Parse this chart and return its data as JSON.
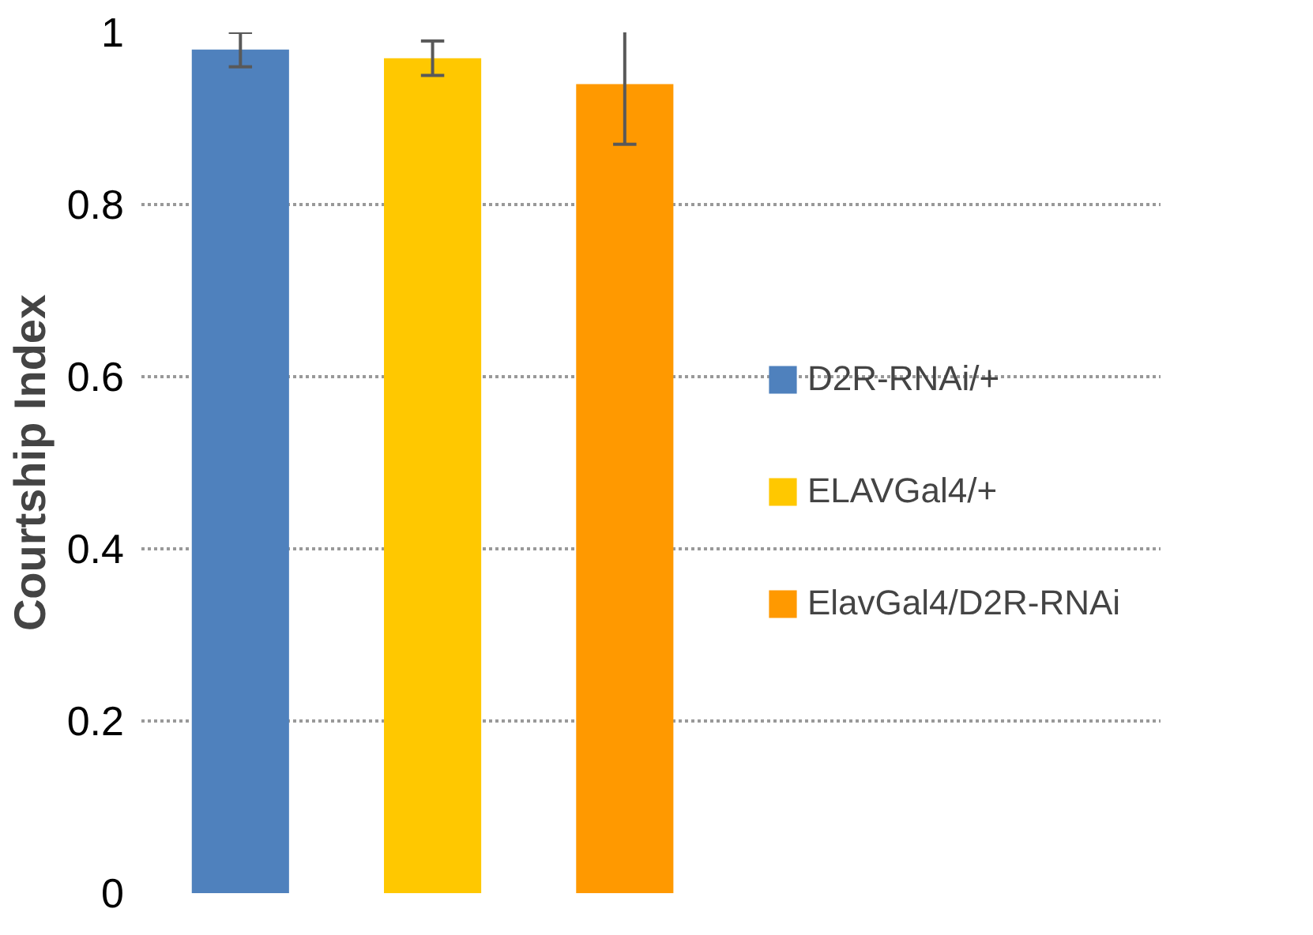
{
  "chart_data": {
    "type": "bar",
    "ylabel": "Courtship Index",
    "categories": [
      null
    ],
    "series": [
      {
        "name": "D2R-RNAi/+",
        "color": "#4f81bd",
        "values": [
          0.98
        ],
        "errors": [
          0.02
        ]
      },
      {
        "name": "ELAVGal4/+",
        "color": "#ffc800",
        "values": [
          0.97
        ],
        "errors": [
          0.02
        ]
      },
      {
        "name": "ElavGal4/D2R-RNAi",
        "color": "#ff9900",
        "values": [
          0.94
        ],
        "errors": [
          0.07
        ]
      }
    ],
    "ylim": [
      0,
      1
    ],
    "yticks": [
      0,
      0.2,
      0.4,
      0.6,
      0.8,
      1
    ],
    "grid": "y",
    "legend": "right",
    "tick_labels": "y"
  }
}
